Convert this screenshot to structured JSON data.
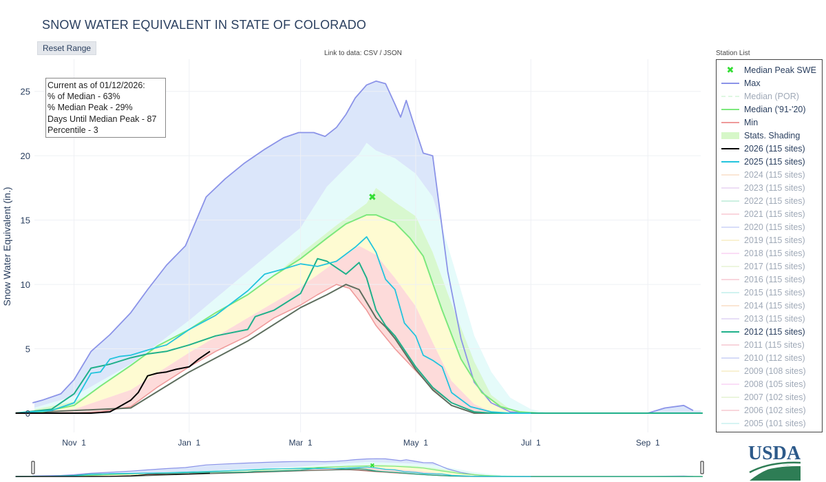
{
  "page": {
    "title": "SNOW WATER EQUIVALENT IN STATE OF COLORADO",
    "reset_button": "Reset Range",
    "data_link": "Link to data: CSV / JSON",
    "station_list": "Station List",
    "logo_text": "USDA"
  },
  "info_box": {
    "lines": [
      "Current as of 01/12/2026:",
      "% of Median - 63%",
      "% Median Peak - 29%",
      "Days Until Median Peak - 87",
      "Percentile - 3"
    ]
  },
  "legend": [
    {
      "label": "Median Peak SWE",
      "symbol": "x",
      "color": "#33dd33",
      "active": true
    },
    {
      "label": "Max",
      "symbol": "line",
      "color": "#8b93e8",
      "active": true
    },
    {
      "label": "Median (POR)",
      "symbol": "dash",
      "color": "#b9f0c1",
      "active": false
    },
    {
      "label": "Median ('91-'20)",
      "symbol": "line",
      "color": "#7ce87c",
      "active": true
    },
    {
      "label": "Min",
      "symbol": "line",
      "color": "#ef9a9a",
      "active": true
    },
    {
      "label": "Stats. Shading",
      "symbol": "band",
      "color": "#d6f7c8",
      "active": true
    },
    {
      "label": "2026 (115 sites)",
      "symbol": "line",
      "color": "#000000",
      "active": true
    },
    {
      "label": "2025 (115 sites)",
      "symbol": "line",
      "color": "#22c4dd",
      "active": true
    },
    {
      "label": "2024 (115 sites)",
      "symbol": "line",
      "color": "#f7c8a3",
      "active": false
    },
    {
      "label": "2023 (115 sites)",
      "symbol": "line",
      "color": "#d9b8ea",
      "active": false
    },
    {
      "label": "2022 (115 sites)",
      "symbol": "line",
      "color": "#8fe0bd",
      "active": false
    },
    {
      "label": "2021 (115 sites)",
      "symbol": "line",
      "color": "#f6a6b6",
      "active": false
    },
    {
      "label": "2020 (115 sites)",
      "symbol": "line",
      "color": "#a9b4f2",
      "active": false
    },
    {
      "label": "2019 (115 sites)",
      "symbol": "line",
      "color": "#f3e3a0",
      "active": false
    },
    {
      "label": "2018 (115 sites)",
      "symbol": "line",
      "color": "#f4b6ec",
      "active": false
    },
    {
      "label": "2017 (115 sites)",
      "symbol": "line",
      "color": "#d8ecb8",
      "active": false
    },
    {
      "label": "2016 (115 sites)",
      "symbol": "line",
      "color": "#f3a5b4",
      "active": false
    },
    {
      "label": "2015 (115 sites)",
      "symbol": "line",
      "color": "#98e6e0",
      "active": false
    },
    {
      "label": "2014 (115 sites)",
      "symbol": "line",
      "color": "#f6c9a0",
      "active": false
    },
    {
      "label": "2013 (115 sites)",
      "symbol": "line",
      "color": "#cbb8ef",
      "active": false
    },
    {
      "label": "2012 (115 sites)",
      "symbol": "line",
      "color": "#1fb08a",
      "active": true
    },
    {
      "label": "2011 (115 sites)",
      "symbol": "line",
      "color": "#f0a3b2",
      "active": false
    },
    {
      "label": "2010 (112 sites)",
      "symbol": "line",
      "color": "#a6b1f0",
      "active": false
    },
    {
      "label": "2009 (108 sites)",
      "symbol": "line",
      "color": "#f3e2a0",
      "active": false
    },
    {
      "label": "2008 (105 sites)",
      "symbol": "line",
      "color": "#f5b8ee",
      "active": false
    },
    {
      "label": "2007 (102 sites)",
      "symbol": "line",
      "color": "#d5ebb6",
      "active": false
    },
    {
      "label": "2006 (102 sites)",
      "symbol": "line",
      "color": "#f2a6b3",
      "active": false
    },
    {
      "label": "2005 (101 sites)",
      "symbol": "line",
      "color": "#a5e8e6",
      "active": false
    }
  ],
  "chart_data": {
    "type": "line",
    "title": "SNOW WATER EQUIVALENT IN STATE OF COLORADO",
    "xlabel": "",
    "ylabel": "Snow Water Equivalent (in.)",
    "x_ticks": [
      "Nov 1",
      "Jan 1",
      "Mar 1",
      "May 1",
      "Jul 1",
      "Sep 1"
    ],
    "y_ticks": [
      0,
      5,
      10,
      15,
      20,
      25
    ],
    "ylim": [
      -1.5,
      27.5
    ],
    "grid": true,
    "legend_position": "right",
    "x_unit": "date (water year Oct 1 - Sep 30)",
    "median_peak": {
      "date": "Apr 8",
      "value": 16.8
    },
    "series": {
      "max": {
        "name": "Max",
        "x": [
          "Oct 10",
          "Oct 15",
          "Oct 25",
          "Nov 1",
          "Nov 10",
          "Nov 20",
          "Dec 1",
          "Dec 10",
          "Dec 20",
          "Dec 30",
          "Jan 10",
          "Jan 20",
          "Jan 30",
          "Feb 10",
          "Feb 20",
          "Feb 28",
          "Mar 8",
          "Mar 14",
          "Mar 20",
          "Mar 25",
          "Mar 30",
          "Apr 5",
          "Apr 10",
          "Apr 15",
          "Apr 20",
          "Apr 23",
          "Apr 26",
          "May 1",
          "May 5",
          "May 10",
          "May 14",
          "May 18",
          "May 25",
          "Jun 1",
          "Jun 10",
          "Jun 20",
          "Jun 30",
          "Jul 10",
          "Jul 20",
          "Aug 1",
          "Aug 15",
          "Sep 1",
          "Sep 10",
          "Sep 20",
          "Sep 25"
        ],
        "y": [
          0.8,
          1.0,
          1.5,
          2.6,
          4.8,
          6.1,
          7.8,
          9.6,
          11.5,
          13.0,
          16.8,
          18.2,
          19.4,
          20.5,
          21.4,
          21.8,
          21.8,
          21.5,
          22.2,
          23.2,
          24.5,
          25.5,
          25.8,
          25.6,
          24.0,
          23.0,
          24.3,
          22.0,
          20.2,
          20.0,
          15.5,
          11.0,
          5.8,
          2.4,
          0.8,
          0.1,
          0.0,
          0.0,
          0.0,
          0.0,
          0.0,
          0.0,
          0.4,
          0.6,
          0.2
        ]
      },
      "median_91_20": {
        "name": "Median ('91-'20)",
        "x": [
          "Oct 1",
          "Oct 15",
          "Nov 1",
          "Nov 15",
          "Dec 1",
          "Dec 15",
          "Jan 1",
          "Jan 15",
          "Feb 1",
          "Feb 15",
          "Mar 1",
          "Mar 15",
          "Mar 25",
          "Apr 5",
          "Apr 10",
          "Apr 20",
          "Apr 28",
          "May 5",
          "May 15",
          "May 25",
          "Jun 5",
          "Jun 15",
          "Jun 25",
          "Jul 5",
          "Aug 1",
          "Sep 1",
          "Sep 30"
        ],
        "y": [
          0.0,
          0.1,
          0.6,
          2.1,
          3.7,
          5.2,
          6.5,
          7.8,
          9.2,
          10.7,
          12.0,
          13.6,
          14.7,
          15.4,
          15.4,
          14.8,
          13.6,
          12.2,
          8.0,
          4.2,
          1.6,
          0.5,
          0.1,
          0.0,
          0.0,
          0.0,
          0.0
        ]
      },
      "min": {
        "name": "Min",
        "x": [
          "Oct 1",
          "Nov 1",
          "Nov 15",
          "Dec 1",
          "Dec 15",
          "Jan 1",
          "Jan 15",
          "Feb 1",
          "Feb 15",
          "Mar 1",
          "Mar 10",
          "Mar 20",
          "Mar 27",
          "Apr 5",
          "Apr 10",
          "Apr 20",
          "May 1",
          "May 10",
          "May 20",
          "Jun 1",
          "Jun 10",
          "Jun 30",
          "Jul 30",
          "Sep 30"
        ],
        "y": [
          0.0,
          0.0,
          0.1,
          0.5,
          2.0,
          3.6,
          4.8,
          6.0,
          7.4,
          8.4,
          9.2,
          10.0,
          9.7,
          8.0,
          6.8,
          5.0,
          3.3,
          1.9,
          0.8,
          0.1,
          0.0,
          0.0,
          0.0,
          0.0
        ]
      },
      "y2026": {
        "name": "2026 (115 sites)",
        "x": [
          "Oct 1",
          "Nov 10",
          "Nov 20",
          "Nov 25",
          "Dec 1",
          "Dec 5",
          "Dec 10",
          "Dec 15",
          "Dec 20",
          "Dec 25",
          "Jan 1",
          "Jan 6",
          "Jan 12"
        ],
        "y": [
          0.0,
          0.0,
          0.1,
          0.5,
          1.0,
          1.6,
          2.9,
          3.1,
          3.2,
          3.4,
          3.6,
          4.2,
          4.8
        ]
      },
      "y2025": {
        "name": "2025 (115 sites)",
        "x": [
          "Oct 1",
          "Oct 20",
          "Nov 1",
          "Nov 10",
          "Nov 15",
          "Nov 20",
          "Nov 25",
          "Dec 1",
          "Dec 10",
          "Dec 20",
          "Jan 1",
          "Jan 15",
          "Feb 1",
          "Feb 10",
          "Feb 15",
          "Feb 20",
          "Mar 1",
          "Mar 10",
          "Mar 20",
          "Mar 30",
          "Apr 5",
          "Apr 10",
          "Apr 15",
          "Apr 20",
          "Apr 25",
          "May 1",
          "May 5",
          "May 10",
          "May 15",
          "May 20",
          "May 30",
          "Jun 10",
          "Jun 20",
          "Jul 1"
        ],
        "y": [
          0.0,
          0.2,
          0.8,
          3.1,
          3.2,
          4.2,
          4.4,
          4.5,
          4.9,
          5.3,
          6.5,
          7.6,
          9.5,
          10.8,
          11.0,
          11.2,
          11.6,
          11.4,
          11.8,
          12.9,
          13.7,
          12.5,
          10.4,
          9.6,
          7.0,
          6.0,
          4.5,
          4.1,
          3.6,
          1.6,
          0.5,
          0.1,
          0.0,
          0.0
        ]
      },
      "y2012": {
        "name": "2012 (115 sites)",
        "x": [
          "Oct 1",
          "Oct 20",
          "Nov 1",
          "Nov 10",
          "Nov 20",
          "Dec 1",
          "Dec 10",
          "Dec 20",
          "Jan 1",
          "Jan 15",
          "Feb 1",
          "Feb 5",
          "Feb 15",
          "Mar 1",
          "Mar 10",
          "Mar 15",
          "Mar 20",
          "Mar 25",
          "Apr 1",
          "Apr 5",
          "Apr 10",
          "Apr 15",
          "Apr 20",
          "May 1",
          "May 10",
          "May 20",
          "Jun 1",
          "Jun 10",
          "Jun 30",
          "Sep 30"
        ],
        "y": [
          0.0,
          0.3,
          1.5,
          3.5,
          3.8,
          4.3,
          4.6,
          4.8,
          5.3,
          6.0,
          6.5,
          7.5,
          8.0,
          9.3,
          12.0,
          11.8,
          11.3,
          10.8,
          11.7,
          10.5,
          8.0,
          6.8,
          6.0,
          3.6,
          2.0,
          0.8,
          0.1,
          0.0,
          0.0,
          0.0
        ]
      },
      "darkgray": {
        "x": [
          "Oct 1",
          "Dec 1",
          "Jan 1",
          "Feb 1",
          "Mar 1",
          "Mar 15",
          "Mar 25",
          "Apr 1",
          "Apr 10",
          "Apr 15",
          "Apr 20",
          "May 1",
          "May 10",
          "May 20",
          "Jun 1",
          "Jun 10",
          "Jun 30",
          "Sep 30"
        ],
        "y": [
          0.0,
          0.4,
          3.2,
          5.6,
          8.2,
          9.2,
          10.0,
          9.6,
          7.4,
          6.7,
          5.8,
          3.4,
          1.8,
          0.6,
          0.0,
          0.0,
          0.0,
          0.0
        ]
      }
    },
    "bands": [
      {
        "name": "90-max",
        "color": "#dbe6fa",
        "upper": "max",
        "lower": "p90"
      },
      {
        "name": "70-90",
        "color": "#e5fbfa",
        "upper": "p90",
        "lower": "p70"
      },
      {
        "name": "50-70",
        "color": "#d8f8cf",
        "upper": "p70",
        "lower": "median"
      },
      {
        "name": "30-50",
        "color": "#fefbd2",
        "upper": "median",
        "lower": "p30"
      },
      {
        "name": "min-30",
        "color": "#fddbda",
        "upper": "p30",
        "lower": "min"
      }
    ],
    "percentiles": {
      "p90": {
        "x": [
          "Oct 1",
          "Nov 1",
          "Dec 1",
          "Jan 1",
          "Feb 1",
          "Mar 1",
          "Mar 15",
          "Apr 1",
          "Apr 5",
          "Apr 10",
          "Apr 20",
          "May 1",
          "May 10",
          "May 20",
          "Jun 1",
          "Jun 10",
          "Jun 20",
          "Jul 1",
          "Jul 10",
          "Jul 20",
          "Sep 30"
        ],
        "y": [
          0.0,
          1.3,
          3.8,
          7.2,
          11.0,
          14.4,
          17.6,
          20.1,
          21.0,
          20.4,
          19.8,
          18.6,
          16.8,
          12.0,
          6.0,
          3.2,
          1.2,
          0.3,
          0.0,
          0.0,
          0.0
        ]
      },
      "p70": {
        "x": [
          "Oct 1",
          "Nov 1",
          "Dec 1",
          "Jan 1",
          "Feb 1",
          "Mar 1",
          "Mar 20",
          "Apr 5",
          "Apr 10",
          "Apr 20",
          "May 1",
          "May 10",
          "May 20",
          "Jun 1",
          "Jun 10",
          "Jun 20",
          "Jul 1",
          "Sep 30"
        ],
        "y": [
          0.0,
          0.9,
          2.9,
          5.8,
          9.0,
          12.4,
          14.6,
          16.3,
          17.5,
          16.4,
          15.3,
          12.5,
          8.5,
          4.0,
          1.4,
          0.3,
          0.0,
          0.0
        ]
      },
      "p30": {
        "x": [
          "Oct 1",
          "Nov 1",
          "Dec 1",
          "Jan 1",
          "Feb 1",
          "Mar 1",
          "Mar 20",
          "Apr 1",
          "Apr 10",
          "Apr 20",
          "May 1",
          "May 10",
          "May 20",
          "Jun 1",
          "Jun 10",
          "Jun 20",
          "Sep 30"
        ],
        "y": [
          0.0,
          0.3,
          1.8,
          4.7,
          7.4,
          9.8,
          11.8,
          13.0,
          12.3,
          10.5,
          8.3,
          5.5,
          2.5,
          0.7,
          0.1,
          0.0,
          0.0
        ]
      }
    }
  }
}
